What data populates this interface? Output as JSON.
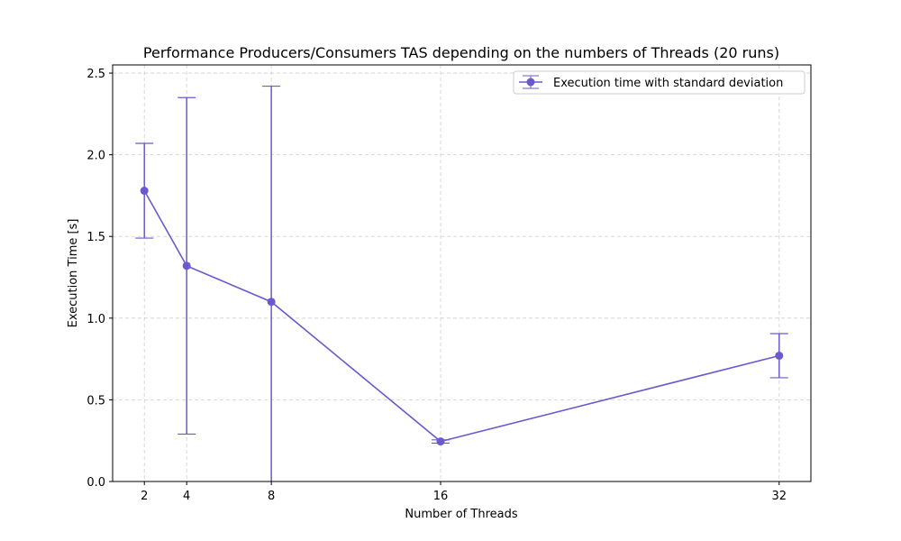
{
  "chart_data": {
    "type": "line",
    "title": "Performance Producers/Consumers TAS depending on the numbers of Threads (20 runs)",
    "xlabel": "Number of Threads",
    "ylabel": "Execution Time [s]",
    "x": [
      2,
      4,
      8,
      16,
      32
    ],
    "xticks": [
      "2",
      "4",
      "8",
      "16",
      "32"
    ],
    "xlim": [
      0.5,
      33.5
    ],
    "ylim": [
      0,
      2.55
    ],
    "yticks": [
      "0.0",
      "0.5",
      "1.0",
      "1.5",
      "2.0",
      "2.5"
    ],
    "grid": true,
    "legend_position": "top-right",
    "series": [
      {
        "name": "Execution time with standard deviation",
        "color": "#6a5acd",
        "values": [
          1.78,
          1.32,
          1.1,
          0.245,
          0.77
        ],
        "error": [
          0.29,
          1.03,
          1.32,
          0.01,
          0.135
        ]
      }
    ]
  }
}
